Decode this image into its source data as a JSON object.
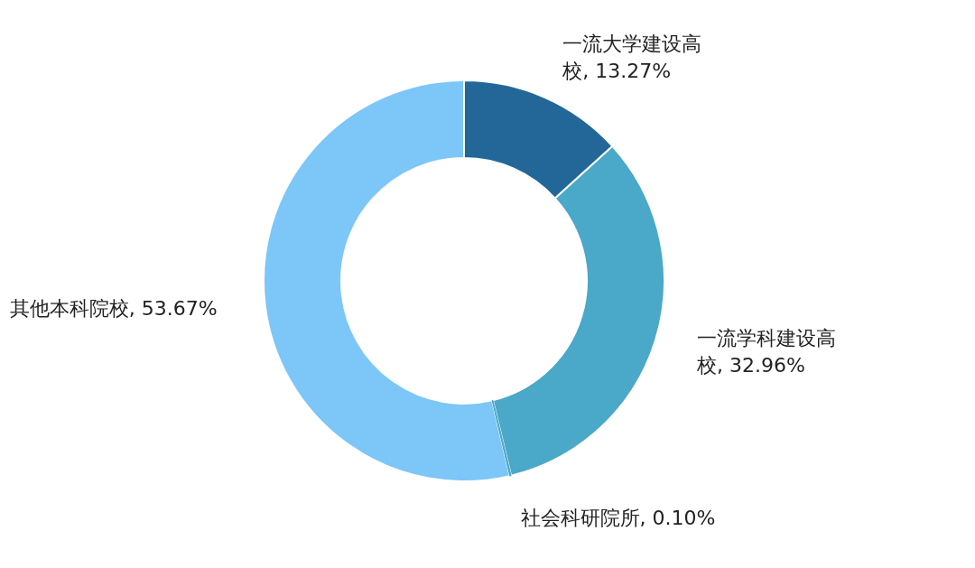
{
  "chart_data": {
    "type": "donut",
    "categories": [
      "一流大学建设高校",
      "一流学科建设高校",
      "社会科研院所",
      "其他本科院校"
    ],
    "values": [
      13.27,
      32.96,
      0.1,
      53.67
    ],
    "value_labels": [
      "13.27%",
      "32.96%",
      "0.10%",
      "53.67%"
    ],
    "colors": [
      "#236799",
      "#4aa8c8",
      "#4aa8c8",
      "#7cc6f8"
    ],
    "legend": false
  }
}
